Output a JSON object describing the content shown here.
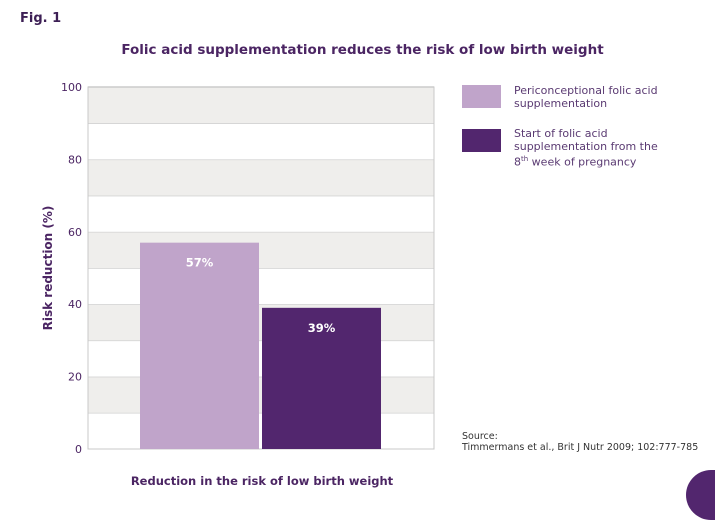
{
  "figure_label": "Fig. 1",
  "chart_data": {
    "type": "bar",
    "title": "Folic acid supplementation reduces the risk of low birth weight",
    "xlabel": "Reduction in the risk of low birth weight",
    "ylabel": "Risk reduction (%)",
    "ylim": [
      0,
      100
    ],
    "yticks": [
      "0",
      "20",
      "40",
      "60",
      "80",
      "100"
    ],
    "grid": true,
    "legend_position": "right",
    "series": [
      {
        "name": "Periconceptional folic acid supplementation",
        "value": 57,
        "label": "57%",
        "color": "#c0a4ca"
      },
      {
        "name": "Start of folic acid supplementation from the 8th week of pregnancy",
        "value": 39,
        "label": "39%",
        "color": "#52266e"
      }
    ]
  },
  "legend": {
    "items": [
      {
        "lines": [
          "Periconceptional folic acid",
          "supplementation"
        ]
      },
      {
        "lines": [
          "Start of folic acid",
          "supplementation from the"
        ],
        "line3_prefix": "8",
        "line3_sup": "th",
        "line3_rest": " week of pregnancy"
      }
    ]
  },
  "source": {
    "label": "Source:",
    "text": "Timmermans et al., Brit J Nutr 2009; 102:777-785"
  }
}
